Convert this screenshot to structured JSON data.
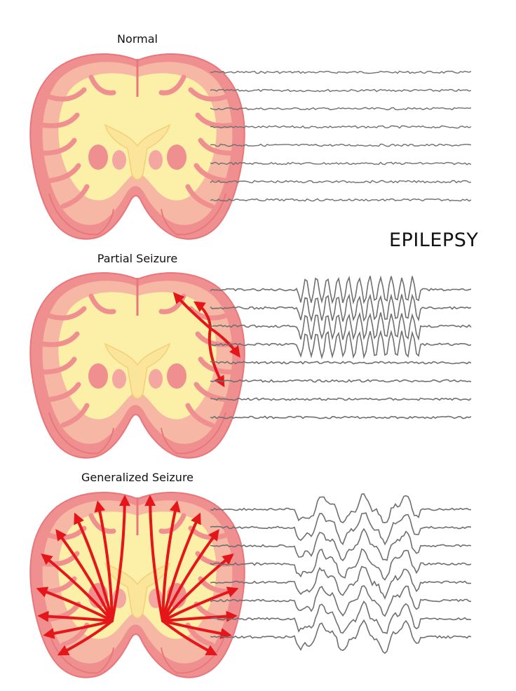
{
  "title": "EPILEPSY",
  "panels": [
    {
      "id": "normal",
      "label": "Normal",
      "seizure": "none"
    },
    {
      "id": "partial",
      "label": "Partial Seizure",
      "seizure": "partial"
    },
    {
      "id": "generalized",
      "label": "Generalized Seizure",
      "seizure": "generalized"
    }
  ],
  "eeg_channels_per_panel": 8,
  "colors": {
    "cortex_outer": "#ef8f90",
    "cortex_inner": "#f6b7a5",
    "white_matter": "#fcefa8",
    "core": "#fbe59a",
    "outline": "#e8777c",
    "arrow": "#e5161a",
    "eeg_trace": "#6f6f6f",
    "text": "#111111"
  }
}
